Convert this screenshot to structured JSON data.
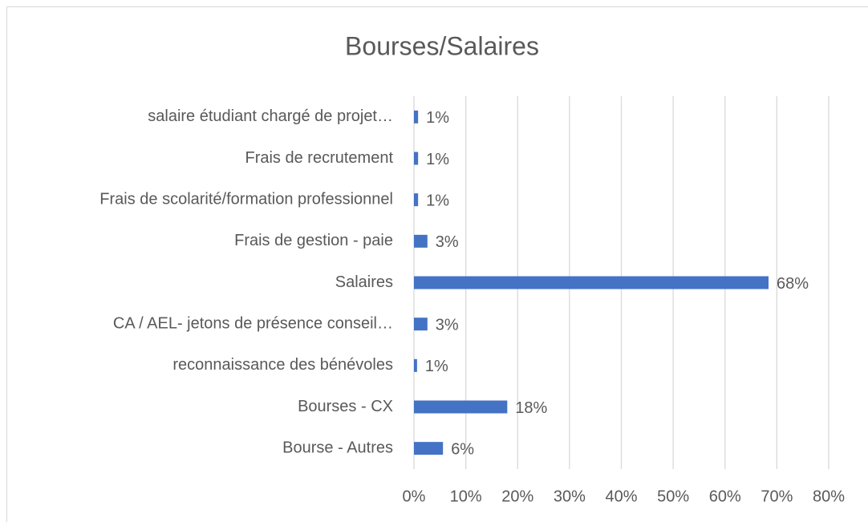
{
  "chart_data": {
    "type": "bar",
    "orientation": "horizontal",
    "title": "Bourses/Salaires",
    "categories": [
      "salaire étudiant chargé de projet…",
      "Frais de recrutement",
      "Frais de scolarité/formation professionnel",
      "Frais de gestion - paie",
      "Salaires",
      "CA / AEL- jetons de présence conseil…",
      "reconnaissance des bénévoles",
      "Bourses - CX",
      "Bourse - Autres"
    ],
    "values": [
      0.8,
      0.8,
      0.8,
      2.6,
      68.4,
      2.6,
      0.6,
      18.0,
      5.6
    ],
    "value_labels": [
      "1%",
      "1%",
      "1%",
      "3%",
      "68%",
      "3%",
      "1%",
      "18%",
      "6%"
    ],
    "color": "#4472c4",
    "xlim": [
      0,
      80
    ],
    "xticks": [
      {
        "value": 0,
        "label": "0%"
      },
      {
        "value": 10,
        "label": "10%"
      },
      {
        "value": 20,
        "label": "20%"
      },
      {
        "value": 30,
        "label": "30%"
      },
      {
        "value": 40,
        "label": "40%"
      },
      {
        "value": 50,
        "label": "50%"
      },
      {
        "value": 60,
        "label": "60%"
      },
      {
        "value": 70,
        "label": "70%"
      },
      {
        "value": 80,
        "label": "80%"
      }
    ],
    "grid": true
  }
}
